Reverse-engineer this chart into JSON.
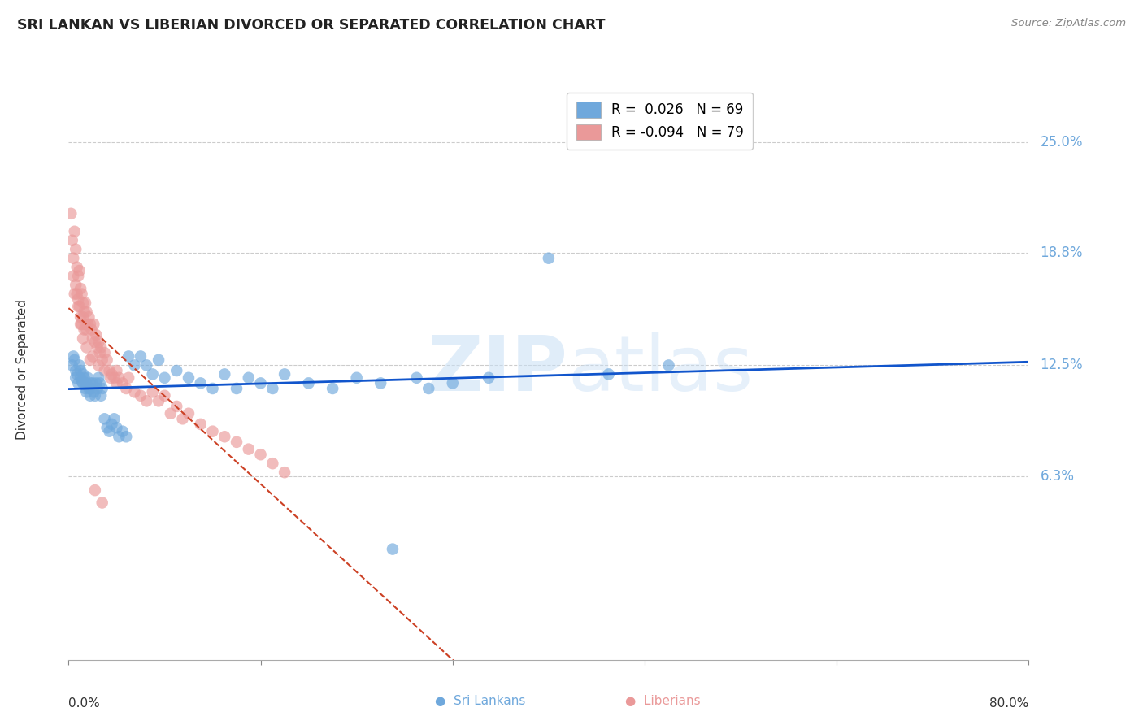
{
  "title": "SRI LANKAN VS LIBERIAN DIVORCED OR SEPARATED CORRELATION CHART",
  "source": "Source: ZipAtlas.com",
  "ylabel": "Divorced or Separated",
  "ytick_labels": [
    "25.0%",
    "18.8%",
    "12.5%",
    "6.3%"
  ],
  "ytick_values": [
    0.25,
    0.188,
    0.125,
    0.063
  ],
  "xmin": 0.0,
  "xmax": 0.8,
  "ymin": -0.04,
  "ymax": 0.285,
  "sri_lankan_R": 0.026,
  "sri_lankan_N": 69,
  "liberian_R": -0.094,
  "liberian_N": 79,
  "sri_lankan_color": "#6fa8dc",
  "liberian_color": "#ea9999",
  "sri_lankan_line_color": "#1155cc",
  "liberian_line_color": "#cc4125",
  "watermark_zip": "ZIP",
  "watermark_atlas": "atlas",
  "sri_lankans_x": [
    0.003,
    0.004,
    0.005,
    0.006,
    0.006,
    0.007,
    0.008,
    0.009,
    0.01,
    0.01,
    0.011,
    0.012,
    0.012,
    0.013,
    0.014,
    0.015,
    0.015,
    0.016,
    0.017,
    0.018,
    0.018,
    0.019,
    0.02,
    0.021,
    0.022,
    0.023,
    0.024,
    0.025,
    0.026,
    0.027,
    0.028,
    0.03,
    0.032,
    0.034,
    0.036,
    0.038,
    0.04,
    0.042,
    0.045,
    0.048,
    0.05,
    0.055,
    0.06,
    0.065,
    0.07,
    0.075,
    0.08,
    0.09,
    0.1,
    0.11,
    0.12,
    0.13,
    0.14,
    0.15,
    0.16,
    0.17,
    0.18,
    0.2,
    0.22,
    0.24,
    0.26,
    0.3,
    0.32,
    0.35,
    0.4,
    0.45,
    0.5,
    0.27,
    0.29
  ],
  "sri_lankans_y": [
    0.125,
    0.13,
    0.128,
    0.122,
    0.118,
    0.12,
    0.115,
    0.125,
    0.122,
    0.118,
    0.116,
    0.12,
    0.115,
    0.118,
    0.112,
    0.115,
    0.11,
    0.118,
    0.112,
    0.115,
    0.108,
    0.112,
    0.115,
    0.11,
    0.108,
    0.115,
    0.112,
    0.118,
    0.115,
    0.108,
    0.112,
    0.095,
    0.09,
    0.088,
    0.092,
    0.095,
    0.09,
    0.085,
    0.088,
    0.085,
    0.13,
    0.125,
    0.13,
    0.125,
    0.12,
    0.128,
    0.118,
    0.122,
    0.118,
    0.115,
    0.112,
    0.12,
    0.112,
    0.118,
    0.115,
    0.112,
    0.12,
    0.115,
    0.112,
    0.118,
    0.115,
    0.112,
    0.115,
    0.118,
    0.185,
    0.12,
    0.125,
    0.022,
    0.118
  ],
  "liberians_x": [
    0.002,
    0.003,
    0.004,
    0.004,
    0.005,
    0.005,
    0.006,
    0.006,
    0.007,
    0.007,
    0.008,
    0.008,
    0.009,
    0.009,
    0.01,
    0.01,
    0.011,
    0.011,
    0.012,
    0.012,
    0.013,
    0.013,
    0.014,
    0.014,
    0.015,
    0.015,
    0.016,
    0.017,
    0.018,
    0.019,
    0.02,
    0.021,
    0.022,
    0.023,
    0.024,
    0.025,
    0.026,
    0.027,
    0.028,
    0.03,
    0.032,
    0.034,
    0.036,
    0.038,
    0.04,
    0.042,
    0.045,
    0.048,
    0.05,
    0.055,
    0.06,
    0.065,
    0.07,
    0.075,
    0.08,
    0.085,
    0.09,
    0.095,
    0.1,
    0.11,
    0.12,
    0.13,
    0.14,
    0.15,
    0.16,
    0.17,
    0.18,
    0.02,
    0.025,
    0.03,
    0.035,
    0.04,
    0.008,
    0.01,
    0.012,
    0.015,
    0.018,
    0.022,
    0.028
  ],
  "liberians_y": [
    0.21,
    0.195,
    0.185,
    0.175,
    0.2,
    0.165,
    0.19,
    0.17,
    0.18,
    0.165,
    0.175,
    0.162,
    0.178,
    0.158,
    0.168,
    0.152,
    0.165,
    0.148,
    0.16,
    0.152,
    0.155,
    0.145,
    0.16,
    0.148,
    0.155,
    0.145,
    0.148,
    0.152,
    0.148,
    0.145,
    0.14,
    0.148,
    0.138,
    0.142,
    0.135,
    0.138,
    0.132,
    0.135,
    0.128,
    0.132,
    0.128,
    0.122,
    0.12,
    0.118,
    0.122,
    0.118,
    0.115,
    0.112,
    0.118,
    0.11,
    0.108,
    0.105,
    0.11,
    0.105,
    0.108,
    0.098,
    0.102,
    0.095,
    0.098,
    0.092,
    0.088,
    0.085,
    0.082,
    0.078,
    0.075,
    0.07,
    0.065,
    0.13,
    0.125,
    0.122,
    0.118,
    0.115,
    0.158,
    0.148,
    0.14,
    0.135,
    0.128,
    0.055,
    0.048
  ]
}
